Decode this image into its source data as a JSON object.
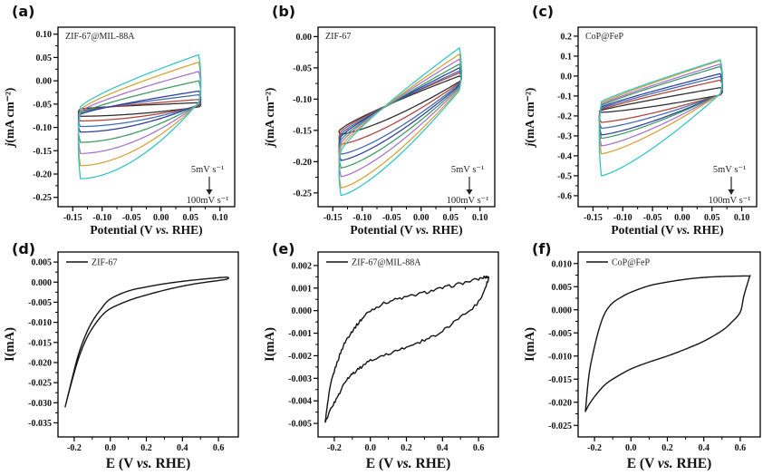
{
  "figure": {
    "background": "#ffffff",
    "axis_color": "#000000",
    "curve_color_single": "#141414",
    "palette": [
      "#2d2a28",
      "#b0413a",
      "#3f68b3",
      "#2c3e9b",
      "#3a9a60",
      "#a671cf",
      "#d7a233",
      "#2ec4c6"
    ]
  },
  "chart_data": [
    {
      "id": "a",
      "letter": "(a)",
      "type": "line",
      "title": "ZIF-67@MIL-88A",
      "xlabel": "Potential (V vs. RHE)",
      "ylabel": "j(mA cm⁻²)",
      "xlim": [
        -0.175,
        0.125
      ],
      "ylim": [
        -0.27,
        0.115
      ],
      "xtick_vals": [
        -0.15,
        -0.1,
        -0.05,
        0.0,
        0.05,
        0.1
      ],
      "xtick_labels": [
        "-0.15",
        "-0.10",
        "-0.05",
        "0.00",
        "0.05",
        "0.10"
      ],
      "ytick_vals": [
        0.1,
        0.05,
        0.0,
        -0.05,
        -0.1,
        -0.15,
        -0.2,
        -0.25
      ],
      "ytick_labels": [
        "0.10",
        "0.05",
        "0.00",
        "-0.05",
        "-0.10",
        "-0.15",
        "-0.20",
        "-0.25"
      ],
      "annotation": {
        "top": "5mV s⁻¹",
        "bottom": "100mV s⁻¹"
      },
      "x_turn": [
        -0.137,
        0.064
      ],
      "shape": {
        "up_exp": 0.8,
        "lo_exp": 1.8
      },
      "series": [
        {
          "color": "#2d2a28",
          "ul": -0.06,
          "ur": -0.047,
          "ll": -0.076,
          "lr": -0.056
        },
        {
          "color": "#b0413a",
          "ul": -0.064,
          "ur": -0.04,
          "ll": -0.086,
          "lr": -0.054
        },
        {
          "color": "#3f68b3",
          "ul": -0.068,
          "ur": -0.03,
          "ll": -0.098,
          "lr": -0.052
        },
        {
          "color": "#2c3e9b",
          "ul": -0.072,
          "ur": -0.022,
          "ll": -0.11,
          "lr": -0.051
        },
        {
          "color": "#3a9a60",
          "ul": -0.07,
          "ur": 0.0,
          "ll": -0.132,
          "lr": -0.05
        },
        {
          "color": "#a671cf",
          "ul": -0.066,
          "ur": 0.02,
          "ll": -0.156,
          "lr": -0.049
        },
        {
          "color": "#d7a233",
          "ul": -0.062,
          "ur": 0.04,
          "ll": -0.182,
          "lr": -0.048
        },
        {
          "color": "#2ec4c6",
          "ul": -0.056,
          "ur": 0.056,
          "ll": -0.21,
          "lr": -0.046
        }
      ]
    },
    {
      "id": "b",
      "letter": "(b)",
      "type": "line",
      "title": "ZIF-67",
      "xlabel": "Potential (V vs. RHE)",
      "ylabel": "j(mA cm⁻²)",
      "xlim": [
        -0.175,
        0.125
      ],
      "ylim": [
        -0.272,
        0.015
      ],
      "xtick_vals": [
        -0.15,
        -0.1,
        -0.05,
        0.0,
        0.05,
        0.1
      ],
      "xtick_labels": [
        "-0.15",
        "-0.10",
        "-0.05",
        "0.00",
        "0.05",
        "0.10"
      ],
      "ytick_vals": [
        0.0,
        -0.05,
        -0.1,
        -0.15,
        -0.2,
        -0.25
      ],
      "ytick_labels": [
        "0.00",
        "-0.05",
        "-0.10",
        "-0.15",
        "-0.20",
        "-0.25"
      ],
      "annotation": {
        "top": "5mV s⁻¹",
        "bottom": "100mV s⁻¹"
      },
      "x_turn": [
        -0.136,
        0.065
      ],
      "shape": {
        "up_exp": 0.85,
        "lo_exp": 1.35
      },
      "series": [
        {
          "color": "#2d2a28",
          "ul": -0.148,
          "ur": -0.063,
          "ll": -0.156,
          "lr": -0.072
        },
        {
          "color": "#b0413a",
          "ul": -0.152,
          "ur": -0.058,
          "ll": -0.172,
          "lr": -0.074
        },
        {
          "color": "#3f68b3",
          "ul": -0.156,
          "ur": -0.055,
          "ll": -0.188,
          "lr": -0.076
        },
        {
          "color": "#2c3e9b",
          "ul": -0.16,
          "ur": -0.05,
          "ll": -0.198,
          "lr": -0.078
        },
        {
          "color": "#3a9a60",
          "ul": -0.165,
          "ur": -0.044,
          "ll": -0.21,
          "lr": -0.08
        },
        {
          "color": "#a671cf",
          "ul": -0.17,
          "ur": -0.036,
          "ll": -0.224,
          "lr": -0.082
        },
        {
          "color": "#d7a233",
          "ul": -0.176,
          "ur": -0.028,
          "ll": -0.242,
          "lr": -0.084
        },
        {
          "color": "#2ec4c6",
          "ul": -0.182,
          "ur": -0.018,
          "ll": -0.254,
          "lr": -0.086
        }
      ]
    },
    {
      "id": "c",
      "letter": "(c)",
      "type": "line",
      "title": "CoP@FeP",
      "xlabel": "Potential (V vs. RHE)",
      "ylabel": "j(mA cm⁻²)",
      "xlim": [
        -0.175,
        0.125
      ],
      "ylim": [
        -0.655,
        0.245
      ],
      "xtick_vals": [
        -0.15,
        -0.1,
        -0.05,
        0.0,
        0.05,
        0.1
      ],
      "xtick_labels": [
        "-0.15",
        "-0.10",
        "-0.05",
        "0.00",
        "0.05",
        "0.10"
      ],
      "ytick_vals": [
        0.2,
        0.1,
        0.0,
        -0.1,
        -0.2,
        -0.3,
        -0.4,
        -0.5,
        -0.6
      ],
      "ytick_labels": [
        "0.2",
        "0.1",
        "0.0",
        "-0.1",
        "-0.2",
        "-0.3",
        "-0.4",
        "-0.5",
        "-0.6"
      ],
      "annotation": {
        "top": "5mV s⁻¹",
        "bottom": "100mV s⁻¹"
      },
      "x_turn": [
        -0.136,
        0.064
      ],
      "shape": {
        "up_exp": 0.9,
        "lo_exp": 1.3
      },
      "series": [
        {
          "color": "#2d2a28",
          "ul": -0.172,
          "ur": -0.058,
          "ll": -0.182,
          "lr": -0.095
        },
        {
          "color": "#b0413a",
          "ul": -0.168,
          "ur": -0.02,
          "ll": -0.232,
          "lr": -0.094
        },
        {
          "color": "#3f68b3",
          "ul": -0.162,
          "ur": -0.002,
          "ll": -0.262,
          "lr": -0.093
        },
        {
          "color": "#2c3e9b",
          "ul": -0.155,
          "ur": 0.012,
          "ll": -0.295,
          "lr": -0.092
        },
        {
          "color": "#3a9a60",
          "ul": -0.148,
          "ur": 0.048,
          "ll": -0.312,
          "lr": -0.091
        },
        {
          "color": "#a671cf",
          "ul": -0.142,
          "ur": 0.06,
          "ll": -0.35,
          "lr": -0.09
        },
        {
          "color": "#d7a233",
          "ul": -0.136,
          "ur": 0.078,
          "ll": -0.39,
          "lr": -0.089
        },
        {
          "color": "#2ec4c6",
          "ul": -0.128,
          "ur": 0.082,
          "ll": -0.5,
          "lr": -0.088
        }
      ]
    },
    {
      "id": "d",
      "letter": "(d)",
      "type": "line",
      "legend": "ZIF-67",
      "xlabel": "E (V vs. RHE)",
      "ylabel": "I(mA)",
      "xlim": [
        -0.29,
        0.71
      ],
      "ylim": [
        -0.0385,
        0.0075
      ],
      "xtick_vals": [
        -0.2,
        0.0,
        0.2,
        0.4,
        0.6
      ],
      "xtick_labels": [
        "-0.2",
        "0.0",
        "0.2",
        "0.4",
        "0.6"
      ],
      "ytick_vals": [
        0.005,
        0.0,
        -0.005,
        -0.01,
        -0.015,
        -0.02,
        -0.025,
        -0.03,
        -0.035
      ],
      "ytick_labels": [
        "0.005",
        "0.000",
        "-0.005",
        "-0.010",
        "-0.015",
        "-0.020",
        "-0.025",
        "-0.030",
        "-0.035"
      ],
      "noise": 0,
      "loop": {
        "upper": [
          [
            -0.25,
            -0.031
          ],
          [
            -0.22,
            -0.0255
          ],
          [
            -0.18,
            -0.0185
          ],
          [
            -0.14,
            -0.0135
          ],
          [
            -0.1,
            -0.0098
          ],
          [
            -0.05,
            -0.0066
          ],
          [
            0.0,
            -0.0042
          ],
          [
            0.1,
            -0.0022
          ],
          [
            0.2,
            -0.0012
          ],
          [
            0.3,
            -0.0004
          ],
          [
            0.4,
            0.0002
          ],
          [
            0.5,
            0.0007
          ],
          [
            0.6,
            0.0011
          ],
          [
            0.65,
            0.0012
          ]
        ],
        "lower": [
          [
            0.65,
            0.0008
          ],
          [
            0.6,
            0.0004
          ],
          [
            0.5,
            -0.0002
          ],
          [
            0.4,
            -0.001
          ],
          [
            0.3,
            -0.002
          ],
          [
            0.2,
            -0.0032
          ],
          [
            0.1,
            -0.0046
          ],
          [
            0.0,
            -0.0066
          ],
          [
            -0.05,
            -0.0085
          ],
          [
            -0.1,
            -0.0115
          ],
          [
            -0.14,
            -0.0148
          ],
          [
            -0.18,
            -0.0195
          ],
          [
            -0.22,
            -0.0258
          ],
          [
            -0.25,
            -0.031
          ]
        ]
      }
    },
    {
      "id": "e",
      "letter": "(e)",
      "type": "line",
      "legend": "ZIF-67@MIL-88A",
      "xlabel": "E (V vs. RHE)",
      "ylabel": "I(mA)",
      "xlim": [
        -0.29,
        0.71
      ],
      "ylim": [
        -0.0056,
        0.0026
      ],
      "xtick_vals": [
        -0.2,
        0.0,
        0.2,
        0.4,
        0.6
      ],
      "xtick_labels": [
        "-0.2",
        "0.0",
        "0.2",
        "0.4",
        "0.6"
      ],
      "ytick_vals": [
        0.002,
        0.001,
        0.0,
        -0.001,
        -0.002,
        -0.003,
        -0.004,
        -0.005
      ],
      "ytick_labels": [
        "0.002",
        "0.001",
        "0.000",
        "-0.001",
        "-0.002",
        "-0.003",
        "-0.004",
        "-0.005"
      ],
      "noise": 7e-05,
      "loop": {
        "upper": [
          [
            -0.25,
            -0.0049
          ],
          [
            -0.22,
            -0.0033
          ],
          [
            -0.18,
            -0.0022
          ],
          [
            -0.14,
            -0.0014
          ],
          [
            -0.1,
            -0.0009
          ],
          [
            -0.05,
            -0.0004
          ],
          [
            0.0,
            0.0
          ],
          [
            0.1,
            0.0004
          ],
          [
            0.2,
            0.0006
          ],
          [
            0.3,
            0.0008
          ],
          [
            0.4,
            0.001
          ],
          [
            0.5,
            0.0012
          ],
          [
            0.6,
            0.0014
          ],
          [
            0.65,
            0.0015
          ]
        ],
        "lower": [
          [
            0.65,
            0.0013
          ],
          [
            0.6,
            0.0004
          ],
          [
            0.5,
            -0.0003
          ],
          [
            0.4,
            -0.0009
          ],
          [
            0.3,
            -0.0013
          ],
          [
            0.2,
            -0.0016
          ],
          [
            0.1,
            -0.0019
          ],
          [
            0.0,
            -0.0022
          ],
          [
            -0.05,
            -0.0025
          ],
          [
            -0.1,
            -0.0028
          ],
          [
            -0.14,
            -0.0032
          ],
          [
            -0.18,
            -0.0038
          ],
          [
            -0.22,
            -0.0044
          ],
          [
            -0.25,
            -0.0049
          ]
        ]
      }
    },
    {
      "id": "f",
      "letter": "(f)",
      "type": "line",
      "legend": "CoP@FeP",
      "xlabel": "E (V vs. RHE)",
      "ylabel": "I(mA)",
      "xlim": [
        -0.29,
        0.71
      ],
      "ylim": [
        -0.0275,
        0.0125
      ],
      "xtick_vals": [
        -0.2,
        0.0,
        0.2,
        0.4,
        0.6
      ],
      "xtick_labels": [
        "-0.2",
        "0.0",
        "0.2",
        "0.4",
        "0.6"
      ],
      "ytick_vals": [
        0.01,
        0.005,
        0.0,
        -0.005,
        -0.01,
        -0.015,
        -0.02,
        -0.025
      ],
      "ytick_labels": [
        "0.010",
        "0.005",
        "0.000",
        "-0.005",
        "-0.010",
        "-0.015",
        "-0.020",
        "-0.025"
      ],
      "noise": 0,
      "loop": {
        "upper": [
          [
            -0.25,
            -0.022
          ],
          [
            -0.23,
            -0.014
          ],
          [
            -0.2,
            -0.008
          ],
          [
            -0.17,
            -0.0035
          ],
          [
            -0.14,
            -0.0005
          ],
          [
            -0.1,
            0.0015
          ],
          [
            -0.05,
            0.0028
          ],
          [
            0.0,
            0.0038
          ],
          [
            0.1,
            0.0052
          ],
          [
            0.2,
            0.006
          ],
          [
            0.3,
            0.0066
          ],
          [
            0.4,
            0.007
          ],
          [
            0.5,
            0.0072
          ],
          [
            0.6,
            0.0073
          ],
          [
            0.65,
            0.0073
          ]
        ],
        "lower": [
          [
            0.65,
            0.007
          ],
          [
            0.62,
            0.003
          ],
          [
            0.6,
            -0.0005
          ],
          [
            0.55,
            -0.0028
          ],
          [
            0.5,
            -0.0045
          ],
          [
            0.4,
            -0.0068
          ],
          [
            0.3,
            -0.0085
          ],
          [
            0.2,
            -0.01
          ],
          [
            0.1,
            -0.0113
          ],
          [
            0.0,
            -0.0128
          ],
          [
            -0.1,
            -0.015
          ],
          [
            -0.15,
            -0.0165
          ],
          [
            -0.2,
            -0.0188
          ],
          [
            -0.23,
            -0.0205
          ],
          [
            -0.25,
            -0.022
          ]
        ]
      }
    }
  ]
}
